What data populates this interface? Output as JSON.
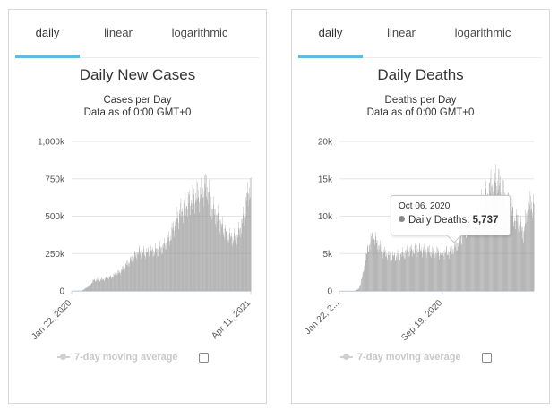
{
  "panels": [
    {
      "tabs": [
        "daily",
        "linear",
        "logarithmic"
      ],
      "active_tab": "daily",
      "title": "Daily New Cases",
      "subtitle1": "Cases per Day",
      "subtitle2": "Data as of 0:00 GMT+0",
      "legend_label": "7-day moving average"
    },
    {
      "tabs": [
        "daily",
        "linear",
        "logarithmic"
      ],
      "active_tab": "daily",
      "title": "Daily Deaths",
      "subtitle1": "Deaths per Day",
      "subtitle2": "Data as of 0:00 GMT+0",
      "legend_label": "7-day moving average",
      "tooltip": {
        "date": "Oct 06, 2020",
        "label": "Daily Deaths:",
        "value": "5,737"
      }
    }
  ],
  "chart_data": [
    {
      "type": "bar",
      "title": "Daily New Cases",
      "ylabel": "Cases per Day",
      "ylim": [
        0,
        1000000
      ],
      "y_ticks": [
        "0",
        "250k",
        "500k",
        "750k",
        "1,000k"
      ],
      "y_tick_values": [
        0,
        250000,
        500000,
        750000,
        1000000
      ],
      "x_tick_labels": [
        "Jan 22, 2020",
        "Apr 11, 2021"
      ],
      "x_tick_index": [
        0,
        445
      ],
      "color": "#999999",
      "grid": true,
      "profile": [
        [
          0,
          0
        ],
        [
          25,
          2000
        ],
        [
          40,
          30000
        ],
        [
          55,
          80000
        ],
        [
          80,
          85000
        ],
        [
          100,
          105000
        ],
        [
          120,
          140000
        ],
        [
          140,
          205000
        ],
        [
          155,
          250000
        ],
        [
          165,
          285000
        ],
        [
          185,
          280000
        ],
        [
          200,
          290000
        ],
        [
          215,
          300000
        ],
        [
          230,
          330000
        ],
        [
          245,
          400000
        ],
        [
          260,
          530000
        ],
        [
          275,
          600000
        ],
        [
          290,
          650000
        ],
        [
          305,
          690000
        ],
        [
          320,
          710000
        ],
        [
          330,
          760000
        ],
        [
          338,
          760000
        ],
        [
          346,
          620000
        ],
        [
          360,
          550000
        ],
        [
          375,
          460000
        ],
        [
          395,
          390000
        ],
        [
          410,
          390000
        ],
        [
          420,
          470000
        ],
        [
          430,
          570000
        ],
        [
          440,
          760000
        ],
        [
          445,
          730000
        ]
      ]
    },
    {
      "type": "bar",
      "title": "Daily Deaths",
      "ylabel": "Deaths per Day",
      "ylim": [
        0,
        20000
      ],
      "y_ticks": [
        "0",
        "5k",
        "10k",
        "15k",
        "20k"
      ],
      "y_tick_values": [
        0,
        5000,
        10000,
        15000,
        20000
      ],
      "x_tick_labels": [
        "Jan 22, 2...",
        "Sep 19, 2020"
      ],
      "x_tick_index": [
        0,
        241
      ],
      "color": "#999999",
      "grid": true,
      "highlight": {
        "date": "Oct 06, 2020",
        "value": 5737
      },
      "profile": [
        [
          0,
          0
        ],
        [
          35,
          0
        ],
        [
          45,
          300
        ],
        [
          55,
          2500
        ],
        [
          62,
          5000
        ],
        [
          70,
          7000
        ],
        [
          78,
          8000
        ],
        [
          88,
          7000
        ],
        [
          100,
          5800
        ],
        [
          120,
          5000
        ],
        [
          140,
          5200
        ],
        [
          160,
          5800
        ],
        [
          180,
          6100
        ],
        [
          200,
          6000
        ],
        [
          220,
          5700
        ],
        [
          240,
          5600
        ],
        [
          258,
          5737
        ],
        [
          270,
          6400
        ],
        [
          285,
          8000
        ],
        [
          300,
          9500
        ],
        [
          315,
          11000
        ],
        [
          330,
          12500
        ],
        [
          345,
          14000
        ],
        [
          355,
          15500
        ],
        [
          365,
          16500
        ],
        [
          375,
          15500
        ],
        [
          385,
          14000
        ],
        [
          395,
          12500
        ],
        [
          405,
          11000
        ],
        [
          420,
          10000
        ],
        [
          430,
          8500
        ],
        [
          438,
          11000
        ],
        [
          448,
          13000
        ],
        [
          455,
          12500
        ]
      ]
    }
  ]
}
